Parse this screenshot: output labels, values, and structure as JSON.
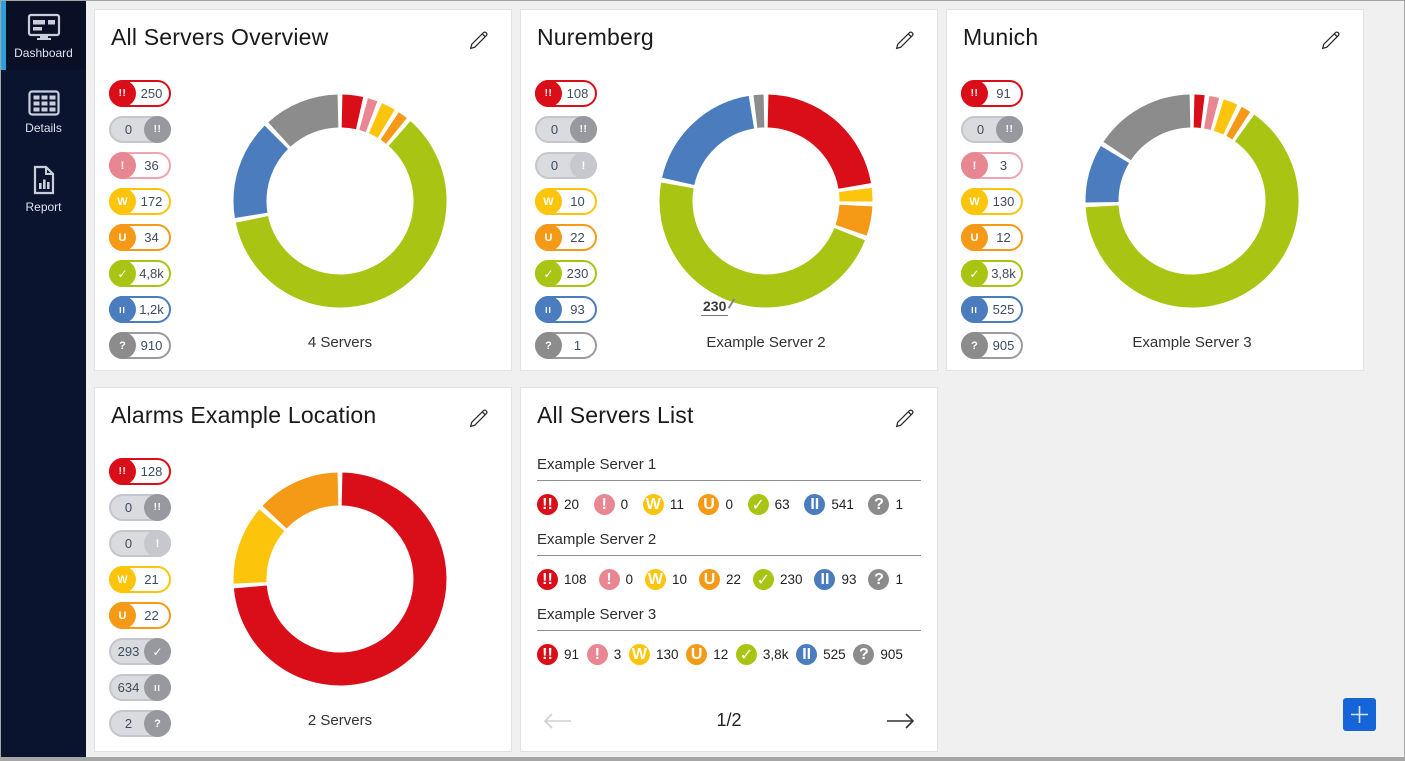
{
  "sidebar": {
    "items": [
      {
        "label": "Dashboard",
        "icon": "dashboard-icon",
        "active": true
      },
      {
        "label": "Details",
        "icon": "details-grid-icon",
        "active": false
      },
      {
        "label": "Report",
        "icon": "report-icon",
        "active": false
      }
    ],
    "bg_color": "#0b142f",
    "active_indicator_color": "#2aa0dc"
  },
  "glyphs": {
    "down": "!!",
    "down_ack": "!!",
    "down_partial": "!",
    "warning": "W",
    "unusual": "U",
    "up": "✓",
    "paused": "II",
    "unknown": "?"
  },
  "status_colors": {
    "down": "#d90e19",
    "down_partial": "#e88792",
    "warning": "#fdc40c",
    "unusual": "#f59a16",
    "up": "#a9c413",
    "paused": "#4a7cbe",
    "unknown": "#8c8c8c"
  },
  "ui_colors": {
    "add_button": "#1565d8",
    "page_background": "#f0f0f0"
  },
  "cards": {
    "overview": {
      "title": "All Servers Overview",
      "caption": "4 Servers",
      "badges": [
        {
          "type": "down",
          "value": "250",
          "active": true
        },
        {
          "type": "down_ack",
          "value": "0",
          "active": false
        },
        {
          "type": "down_partial",
          "value": "36",
          "active": true
        },
        {
          "type": "warning",
          "value": "172",
          "active": true
        },
        {
          "type": "unusual",
          "value": "34",
          "active": true
        },
        {
          "type": "up",
          "value": "4,8k",
          "active": true
        },
        {
          "type": "paused",
          "value": "1,2k",
          "active": true
        },
        {
          "type": "unknown",
          "value": "910",
          "active": true
        }
      ],
      "donut": {
        "segments": [
          {
            "type": "down",
            "value": 250
          },
          {
            "type": "down_partial",
            "value": 36
          },
          {
            "type": "warning",
            "value": 172
          },
          {
            "type": "unusual",
            "value": 34
          },
          {
            "type": "up",
            "value": 4800
          },
          {
            "type": "paused",
            "value": 1200
          },
          {
            "type": "unknown",
            "value": 910
          }
        ]
      }
    },
    "nuremberg": {
      "title": "Nuremberg",
      "caption": "Example Server 2",
      "annotation": "230",
      "badges": [
        {
          "type": "down",
          "value": "108",
          "active": true
        },
        {
          "type": "down_ack",
          "value": "0",
          "active": false
        },
        {
          "type": "down_partial",
          "value": "0",
          "active": false
        },
        {
          "type": "warning",
          "value": "10",
          "active": true
        },
        {
          "type": "unusual",
          "value": "22",
          "active": true
        },
        {
          "type": "up",
          "value": "230",
          "active": true
        },
        {
          "type": "paused",
          "value": "93",
          "active": true
        },
        {
          "type": "unknown",
          "value": "1",
          "active": true
        }
      ],
      "donut": {
        "segments": [
          {
            "type": "down",
            "value": 108
          },
          {
            "type": "warning",
            "value": 10
          },
          {
            "type": "unusual",
            "value": 22
          },
          {
            "type": "up",
            "value": 230
          },
          {
            "type": "paused",
            "value": 93
          },
          {
            "type": "unknown",
            "value": 1
          }
        ]
      }
    },
    "munich": {
      "title": "Munich",
      "caption": "Example Server 3",
      "badges": [
        {
          "type": "down",
          "value": "91",
          "active": true
        },
        {
          "type": "down_ack",
          "value": "0",
          "active": false
        },
        {
          "type": "down_partial",
          "value": "3",
          "active": true
        },
        {
          "type": "warning",
          "value": "130",
          "active": true
        },
        {
          "type": "unusual",
          "value": "12",
          "active": true
        },
        {
          "type": "up",
          "value": "3,8k",
          "active": true
        },
        {
          "type": "paused",
          "value": "525",
          "active": true
        },
        {
          "type": "unknown",
          "value": "905",
          "active": true
        }
      ],
      "donut": {
        "segments": [
          {
            "type": "down",
            "value": 91
          },
          {
            "type": "down_partial",
            "value": 3
          },
          {
            "type": "warning",
            "value": 130
          },
          {
            "type": "unusual",
            "value": 12
          },
          {
            "type": "up",
            "value": 3800
          },
          {
            "type": "paused",
            "value": 525
          },
          {
            "type": "unknown",
            "value": 905
          }
        ]
      }
    },
    "alarms": {
      "title": "Alarms Example Location",
      "caption": "2 Servers",
      "badges": [
        {
          "type": "down",
          "value": "128",
          "active": true
        },
        {
          "type": "down_ack",
          "value": "0",
          "active": false
        },
        {
          "type": "down_partial",
          "value": "0",
          "active": false
        },
        {
          "type": "warning",
          "value": "21",
          "active": true
        },
        {
          "type": "unusual",
          "value": "22",
          "active": true
        },
        {
          "type": "up",
          "value": "293",
          "active": false
        },
        {
          "type": "paused",
          "value": "634",
          "active": false
        },
        {
          "type": "unknown",
          "value": "2",
          "active": false
        }
      ],
      "donut": {
        "segments": [
          {
            "type": "down",
            "value": 128
          },
          {
            "type": "warning",
            "value": 21
          },
          {
            "type": "unusual",
            "value": 22
          }
        ]
      }
    },
    "server_list": {
      "title": "All Servers List",
      "page_indicator": "1/2",
      "servers": [
        {
          "name": "Example Server 1",
          "counts": [
            {
              "type": "down",
              "value": "20"
            },
            {
              "type": "down_partial",
              "value": "0"
            },
            {
              "type": "warning",
              "value": "11"
            },
            {
              "type": "unusual",
              "value": "0"
            },
            {
              "type": "up",
              "value": "63"
            },
            {
              "type": "paused",
              "value": "541"
            },
            {
              "type": "unknown",
              "value": "1"
            }
          ]
        },
        {
          "name": "Example Server 2",
          "counts": [
            {
              "type": "down",
              "value": "108"
            },
            {
              "type": "down_partial",
              "value": "0"
            },
            {
              "type": "warning",
              "value": "10"
            },
            {
              "type": "unusual",
              "value": "22"
            },
            {
              "type": "up",
              "value": "230"
            },
            {
              "type": "paused",
              "value": "93"
            },
            {
              "type": "unknown",
              "value": "1"
            }
          ]
        },
        {
          "name": "Example Server 3",
          "counts": [
            {
              "type": "down",
              "value": "91"
            },
            {
              "type": "down_partial",
              "value": "3"
            },
            {
              "type": "warning",
              "value": "130"
            },
            {
              "type": "unusual",
              "value": "12"
            },
            {
              "type": "up",
              "value": "3,8k"
            },
            {
              "type": "paused",
              "value": "525"
            },
            {
              "type": "unknown",
              "value": "905"
            }
          ]
        }
      ]
    }
  }
}
